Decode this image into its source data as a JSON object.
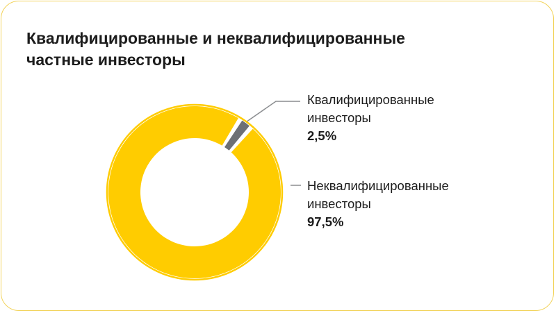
{
  "chart_data": {
    "type": "pie",
    "title": "Квалифицированные и неквалифицированные частные инвесторы",
    "title_lines": [
      "Квалифицированные и неквалифицированные",
      "частные инвесторы"
    ],
    "legend": "right",
    "slices": [
      {
        "label": "Квалифицированные инвесторы",
        "label_lines": [
          "Квалифицированные",
          "инвесторы"
        ],
        "value": 2.5,
        "value_label": "2,5%",
        "color": "#6D7075"
      },
      {
        "label": "Неквалифицированные инвесторы",
        "label_lines": [
          "Неквалифицированные",
          "инвесторы"
        ],
        "value": 97.5,
        "value_label": "97,5%",
        "color": "#FFCC00"
      }
    ]
  },
  "colors": {
    "accent": "#FFCC00",
    "muted": "#6D7075",
    "border": "#F2D35B",
    "leader": "#8A8C8F"
  }
}
